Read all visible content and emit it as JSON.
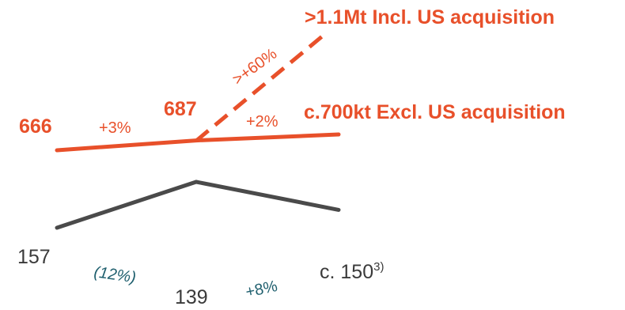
{
  "chart_data": {
    "type": "line",
    "categories": [
      "",
      "",
      ""
    ],
    "colors": {
      "orange": "#E8502A",
      "dark": "#4a4a4a",
      "teal": "#1f5f6e"
    },
    "series": [
      {
        "name": "",
        "values": [
          666,
          687,
          700
        ],
        "point_labels": [
          "666",
          "687",
          "c.700kt Excl. US acquisition"
        ],
        "change_labels": [
          "+3%",
          "+2%"
        ]
      },
      {
        "name": "",
        "values": [
          157,
          139,
          150
        ],
        "point_labels": [
          "157",
          "139",
          "c. 150"
        ],
        "point_label_sup": [
          "",
          "",
          "3)"
        ],
        "change_labels": [
          "(12%)",
          "+8%"
        ]
      }
    ],
    "projection": {
      "from_value": 687,
      "to_value": 1100,
      "style": "dashed",
      "label": ">1.1Mt Incl. US acquisition",
      "change_label": ">+60%"
    }
  }
}
